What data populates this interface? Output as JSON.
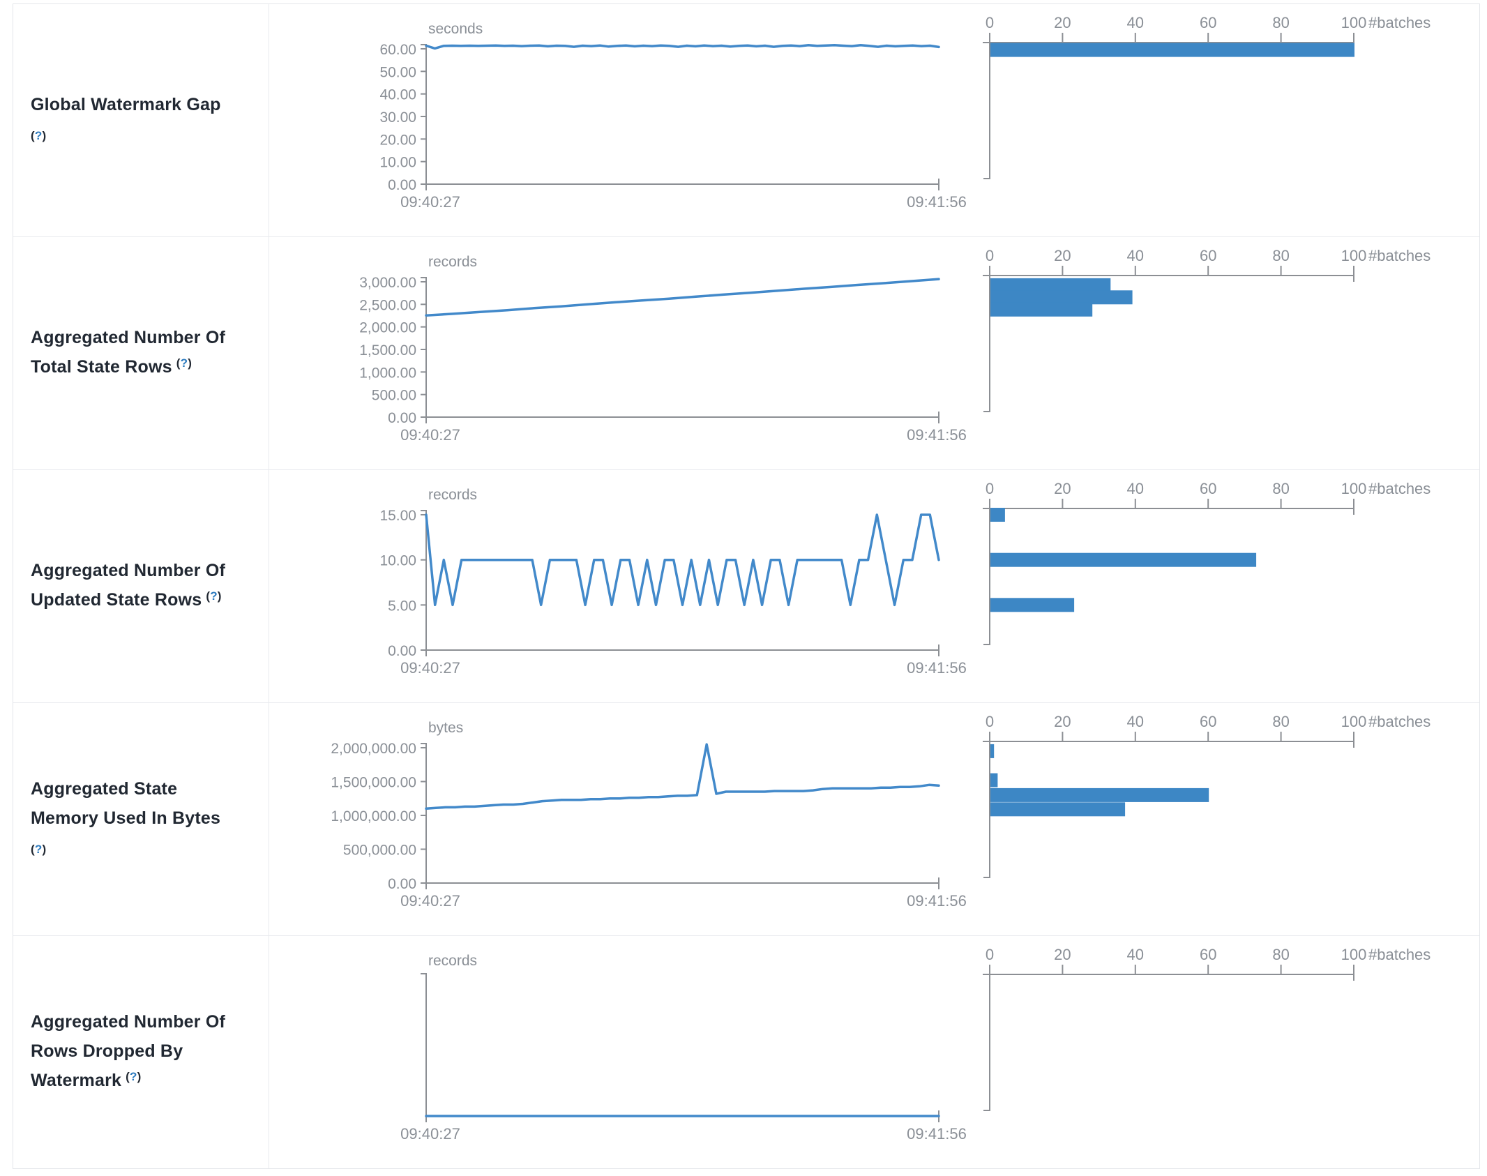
{
  "colors": {
    "line": "#4289ca",
    "bar": "#3d87c5",
    "axis": "#8c8f94",
    "tick_text": "#8a8f96",
    "label_text": "#212832",
    "help_mark": "#2d7bbf",
    "border": "#e8eaee"
  },
  "hist_axis": {
    "tick_labels": [
      "0",
      "20",
      "40",
      "60",
      "80",
      "100"
    ],
    "max": 100,
    "unit": "#batches"
  },
  "chart_data": [
    {
      "type": "line",
      "label_lines": [
        "Global Watermark Gap",
        "(?)"
      ],
      "unit": "seconds",
      "x_start": "09:40:27",
      "x_end": "09:41:56",
      "ymax": 60,
      "yticks": [
        {
          "v": 60,
          "label": "60.00"
        },
        {
          "v": 50,
          "label": "50.00"
        },
        {
          "v": 40,
          "label": "40.00"
        },
        {
          "v": 30,
          "label": "30.00"
        },
        {
          "v": 20,
          "label": "20.00"
        },
        {
          "v": 10,
          "label": "10.00"
        },
        {
          "v": 0,
          "label": "0.00"
        }
      ],
      "line_values": [
        61.4,
        60.2,
        61.3,
        61.4,
        61.3,
        61.4,
        61.3,
        61.4,
        61.5,
        61.3,
        61.4,
        61.2,
        61.4,
        61.5,
        61.1,
        61.4,
        61.3,
        60.9,
        61.4,
        61.2,
        61.5,
        61.0,
        61.3,
        61.5,
        61.1,
        61.4,
        61.2,
        61.5,
        61.3,
        60.9,
        61.4,
        61.1,
        61.5,
        61.2,
        61.4,
        61.0,
        61.3,
        61.5,
        61.1,
        61.4,
        60.9,
        61.3,
        61.5,
        61.2,
        61.6,
        61.3,
        61.5,
        61.6,
        61.4,
        61.2,
        61.6,
        61.3,
        60.9,
        61.4,
        61.1,
        61.3,
        61.5,
        61.2,
        61.4,
        60.8
      ],
      "hist_bars": [
        {
          "count": 100,
          "level": 59.5
        }
      ]
    },
    {
      "type": "line",
      "label_lines": [
        "Aggregated Number Of",
        "Total State Rows (?)"
      ],
      "unit": "records",
      "x_start": "09:40:27",
      "x_end": "09:41:56",
      "ymax": 3000,
      "yticks": [
        {
          "v": 3000,
          "label": "3,000.00"
        },
        {
          "v": 2500,
          "label": "2,500.00"
        },
        {
          "v": 2000,
          "label": "2,000.00"
        },
        {
          "v": 1500,
          "label": "1,500.00"
        },
        {
          "v": 1000,
          "label": "1,000.00"
        },
        {
          "v": 500,
          "label": "500.00"
        },
        {
          "v": 0,
          "label": "0.00"
        }
      ],
      "line_values": [
        2255,
        2290,
        2330,
        2370,
        2415,
        2455,
        2500,
        2545,
        2585,
        2625,
        2670,
        2715,
        2755,
        2800,
        2845,
        2885,
        2930,
        2970,
        3015,
        3060
      ],
      "hist_bars": [
        {
          "count": 33,
          "level": 2925
        },
        {
          "count": 39,
          "level": 2655
        },
        {
          "count": 28,
          "level": 2385
        }
      ]
    },
    {
      "type": "line",
      "label_lines": [
        "Aggregated Number Of",
        "Updated State Rows (?)"
      ],
      "unit": "records",
      "x_start": "09:40:27",
      "x_end": "09:41:56",
      "ymax": 15,
      "yticks": [
        {
          "v": 15,
          "label": "15.00"
        },
        {
          "v": 10,
          "label": "10.00"
        },
        {
          "v": 5,
          "label": "5.00"
        },
        {
          "v": 0,
          "label": "0.00"
        }
      ],
      "line_values": [
        15,
        5,
        10,
        5,
        10,
        10,
        10,
        10,
        10,
        10,
        10,
        10,
        10,
        5,
        10,
        10,
        10,
        10,
        5,
        10,
        10,
        5,
        10,
        10,
        5,
        10,
        5,
        10,
        10,
        5,
        10,
        5,
        10,
        5,
        10,
        10,
        5,
        10,
        5,
        10,
        10,
        5,
        10,
        10,
        10,
        10,
        10,
        10,
        5,
        10,
        10,
        15,
        10,
        5,
        10,
        10,
        15,
        15,
        10
      ],
      "hist_bars": [
        {
          "count": 4,
          "level": 15
        },
        {
          "count": 73,
          "level": 10
        },
        {
          "count": 23,
          "level": 5
        }
      ]
    },
    {
      "type": "line",
      "label_lines": [
        "Aggregated State",
        "Memory Used In Bytes",
        "(?)"
      ],
      "unit": "bytes",
      "x_start": "09:40:27",
      "x_end": "09:41:56",
      "ymax": 2000000,
      "yticks": [
        {
          "v": 2000000,
          "label": "2,000,000.00"
        },
        {
          "v": 1500000,
          "label": "1,500,000.00"
        },
        {
          "v": 1000000,
          "label": "1,000,000.00"
        },
        {
          "v": 500000,
          "label": "500,000.00"
        },
        {
          "v": 0,
          "label": "0.00"
        }
      ],
      "line_values": [
        1100000,
        1110000,
        1120000,
        1120000,
        1130000,
        1130000,
        1140000,
        1150000,
        1160000,
        1160000,
        1170000,
        1190000,
        1210000,
        1220000,
        1230000,
        1230000,
        1230000,
        1240000,
        1240000,
        1250000,
        1250000,
        1260000,
        1260000,
        1270000,
        1270000,
        1280000,
        1290000,
        1290000,
        1300000,
        2050000,
        1320000,
        1350000,
        1350000,
        1350000,
        1350000,
        1350000,
        1360000,
        1360000,
        1360000,
        1360000,
        1370000,
        1390000,
        1400000,
        1400000,
        1400000,
        1400000,
        1400000,
        1410000,
        1410000,
        1420000,
        1420000,
        1430000,
        1450000,
        1440000
      ],
      "hist_bars": [
        {
          "count": 1,
          "level": 1950000
        },
        {
          "count": 2,
          "level": 1520000
        },
        {
          "count": 60,
          "level": 1300000
        },
        {
          "count": 37,
          "level": 1090000
        }
      ]
    },
    {
      "type": "line",
      "label_lines": [
        "Aggregated Number Of",
        "Rows Dropped By",
        "Watermark (?)"
      ],
      "unit": "records",
      "x_start": "09:40:27",
      "x_end": "09:41:56",
      "ymax": 1,
      "yticks": [],
      "line_values": [
        0,
        0,
        0,
        0,
        0,
        0,
        0,
        0,
        0,
        0
      ],
      "hist_bars": []
    }
  ]
}
